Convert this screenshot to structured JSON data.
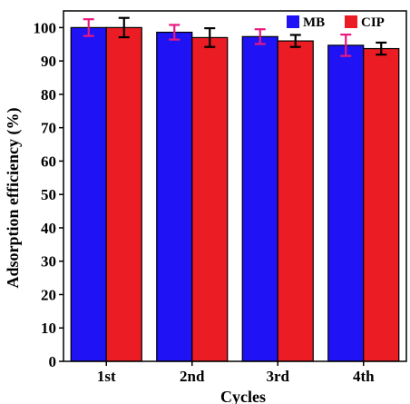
{
  "chart_data": {
    "type": "bar",
    "title": "",
    "xlabel": "Cycles",
    "ylabel": "Adsorption efficiency (%)",
    "categories": [
      "1st",
      "2nd",
      "3rd",
      "4th"
    ],
    "ylim": [
      0,
      105
    ],
    "yticks": [
      0,
      10,
      20,
      30,
      40,
      50,
      60,
      70,
      80,
      90,
      100
    ],
    "grid": false,
    "legend": "top-right",
    "series": [
      {
        "name": "MB",
        "color": "#1f12f5",
        "error_color": "#e8197f",
        "values": [
          100.0,
          98.6,
          97.3,
          94.7
        ],
        "errors": [
          2.5,
          2.2,
          2.2,
          3.2
        ]
      },
      {
        "name": "CIP",
        "color": "#ec1c24",
        "error_color": "#000000",
        "values": [
          100.0,
          97.0,
          96.0,
          93.7
        ],
        "errors": [
          2.9,
          2.8,
          1.8,
          1.8
        ]
      }
    ]
  }
}
